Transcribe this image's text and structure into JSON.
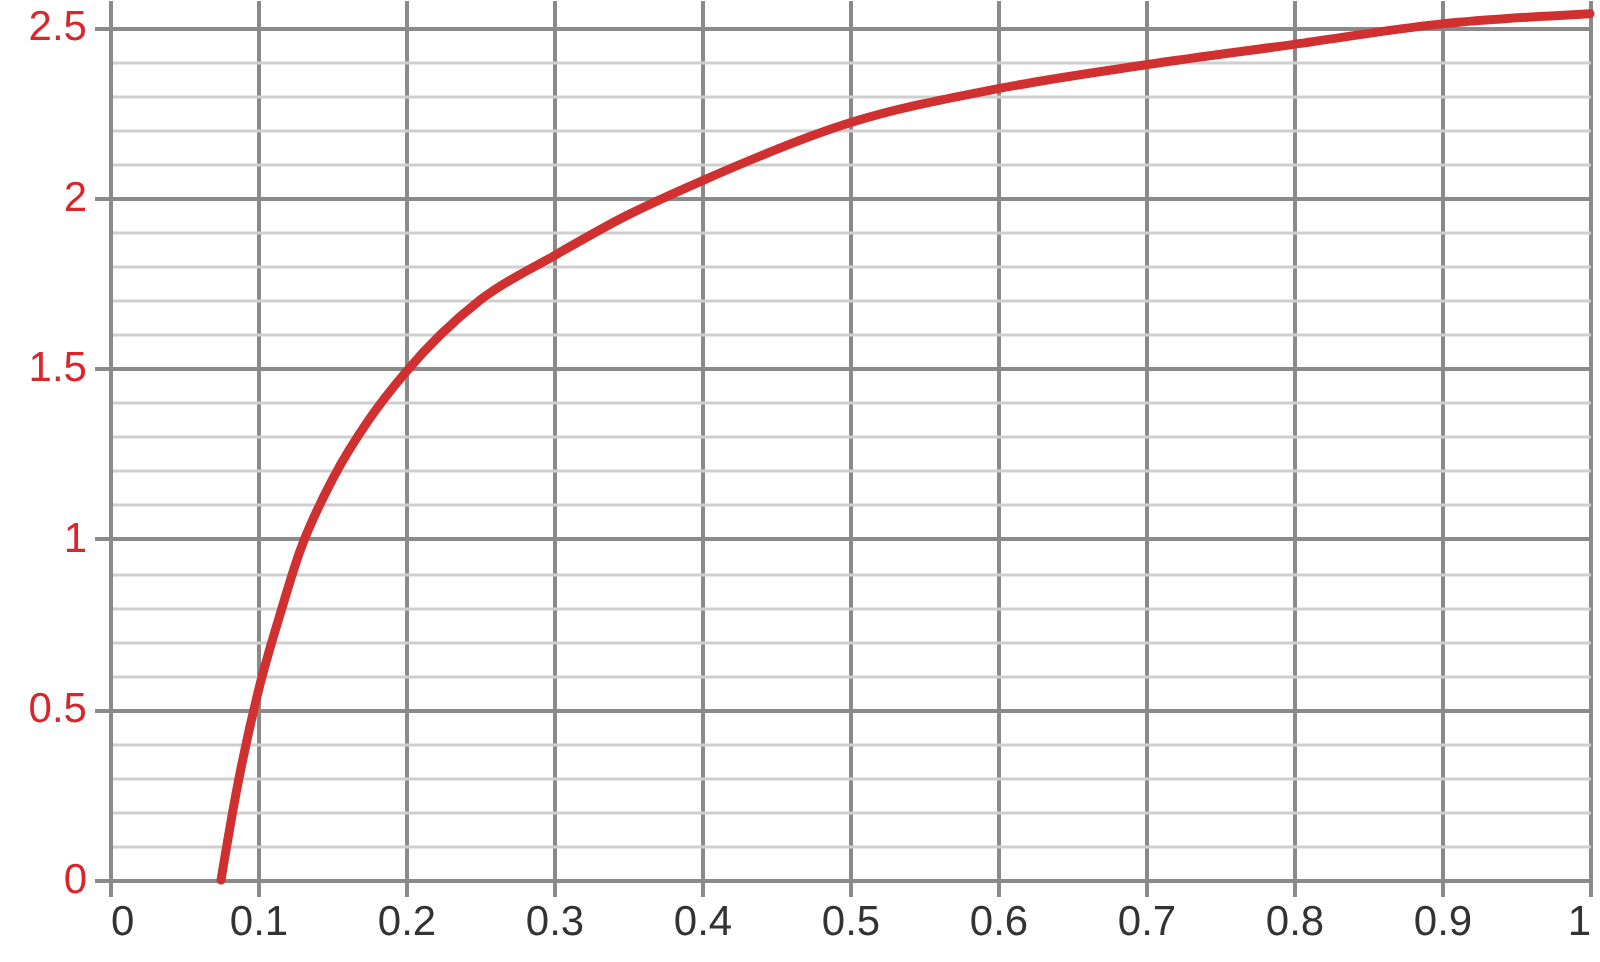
{
  "chart_data": {
    "type": "line",
    "x": [
      0.075,
      0.085,
      0.1,
      0.115,
      0.128,
      0.151,
      0.175,
      0.2,
      0.25,
      0.3,
      0.35,
      0.4,
      0.5,
      0.6,
      0.7,
      0.8,
      0.9,
      1.0
    ],
    "series": [
      {
        "color": "#d03030",
        "values": [
          0,
          0.25,
          0.55,
          0.78,
          0.96,
          1.18,
          1.35,
          1.49,
          1.7,
          1.83,
          1.95,
          2.05,
          2.22,
          2.32,
          2.39,
          2.45,
          2.51,
          2.54
        ]
      }
    ],
    "xlim": [
      0,
      1
    ],
    "ylim": [
      0,
      2.58
    ],
    "xticks": [
      0,
      0.1,
      0.2,
      0.3,
      0.4,
      0.5,
      0.6,
      0.7,
      0.8,
      0.9,
      1
    ],
    "yticks": [
      0,
      0.5,
      1,
      1.5,
      2,
      2.5
    ],
    "grid": true,
    "marker": "none",
    "line_style": "solid"
  }
}
